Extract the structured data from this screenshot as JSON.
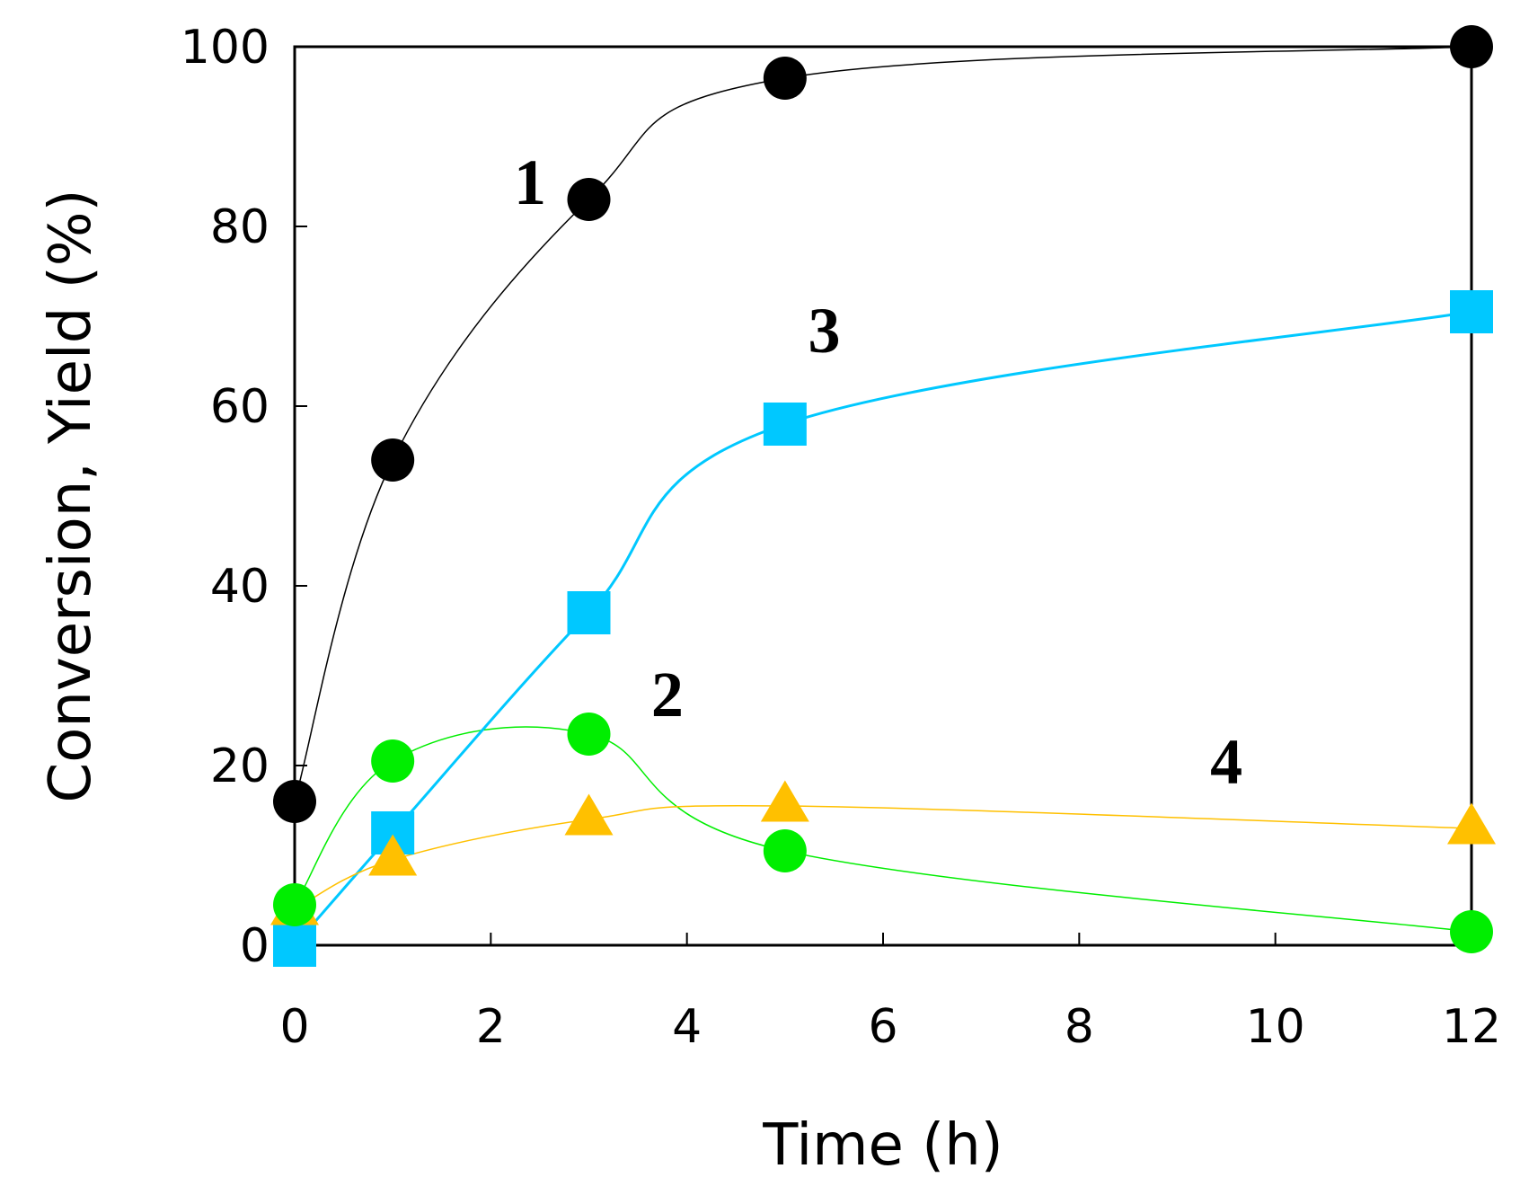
{
  "chart_data": {
    "type": "line",
    "title": "",
    "xlabel": "Time (h)",
    "ylabel": "Conversion, Yield  (%)",
    "xlim": [
      0,
      12
    ],
    "ylim": [
      0,
      100
    ],
    "x_ticks": [
      "0",
      "2",
      "4",
      "6",
      "8",
      "10",
      "12"
    ],
    "y_ticks": [
      "0",
      "20",
      "40",
      "60",
      "80",
      "100"
    ],
    "grid": false,
    "legend": "none",
    "series": [
      {
        "name": "1",
        "label": "1",
        "marker": "circle",
        "color": "#000000",
        "x": [
          0,
          1,
          3,
          5,
          12
        ],
        "y": [
          16,
          54,
          83,
          96.5,
          100
        ]
      },
      {
        "name": "2",
        "label": "2",
        "marker": "circle",
        "color": "#00ee00",
        "x": [
          0,
          1,
          3,
          5,
          12
        ],
        "y": [
          4.5,
          20.5,
          23.5,
          10.5,
          1.5
        ]
      },
      {
        "name": "3",
        "label": "3",
        "marker": "square",
        "color": "#00c8ff",
        "x": [
          0,
          1,
          3,
          5,
          12
        ],
        "y": [
          0,
          12.5,
          37,
          58,
          70.5
        ]
      },
      {
        "name": "4",
        "label": "4",
        "marker": "triangle",
        "color": "#ffc000",
        "x": [
          0,
          1,
          3,
          5,
          12
        ],
        "y": [
          4,
          9.5,
          14,
          15.5,
          13
        ]
      }
    ]
  }
}
